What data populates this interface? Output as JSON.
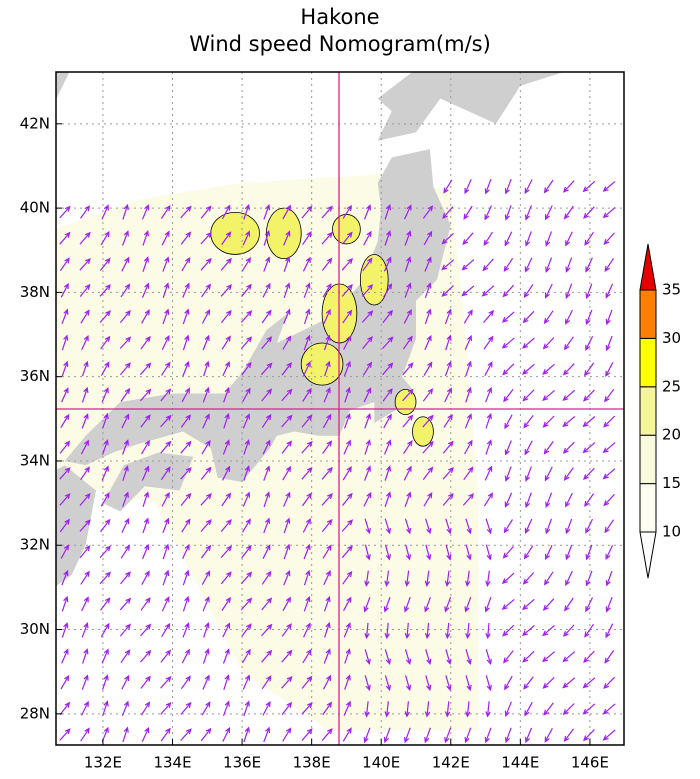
{
  "title": [
    "Hakone",
    "Wind speed Nomogram(m/s)"
  ],
  "map": {
    "xlim": [
      130.65,
      146.98
    ],
    "ylim": [
      27.26,
      43.23
    ],
    "xticks": [
      {
        "value": 132,
        "label": "132E"
      },
      {
        "value": 134,
        "label": "134E"
      },
      {
        "value": 136,
        "label": "136E"
      },
      {
        "value": 138,
        "label": "138E"
      },
      {
        "value": 140,
        "label": "140E"
      },
      {
        "value": 142,
        "label": "142E"
      },
      {
        "value": 144,
        "label": "144E"
      },
      {
        "value": 146,
        "label": "146E"
      }
    ],
    "yticks": [
      {
        "value": 28,
        "label": "28N"
      },
      {
        "value": 30,
        "label": "30N"
      },
      {
        "value": 32,
        "label": "32N"
      },
      {
        "value": 34,
        "label": "34N"
      },
      {
        "value": 36,
        "label": "36N"
      },
      {
        "value": 38,
        "label": "38N"
      },
      {
        "value": 40,
        "label": "40N"
      },
      {
        "value": 42,
        "label": "42N"
      }
    ]
  },
  "colorbar": {
    "levels": [
      10,
      15,
      20,
      25,
      30,
      35
    ],
    "colors": [
      "#ffffff",
      "#fdfdf0",
      "#fafadc",
      "#f5f59a",
      "#ffff00",
      "#ff8000",
      "#e60000"
    ]
  }
}
